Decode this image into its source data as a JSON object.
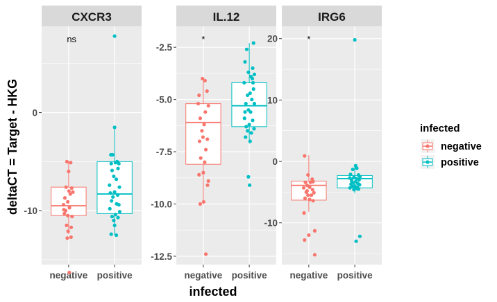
{
  "figure": {
    "ylabel": "deltaCT = Target - HKG",
    "xlabel": "infected",
    "legend": {
      "title": "infected",
      "entries": [
        {
          "label": "negative",
          "color": "#F8766D"
        },
        {
          "label": "positive",
          "color": "#00BFC4"
        }
      ],
      "placement": "right"
    },
    "colors": {
      "panel_bg": "#EBEBEB",
      "strip_bg": "#D9D9D9",
      "grid": "#FFFFFF",
      "negative": "#F8766D",
      "positive": "#00BFC4"
    }
  },
  "chart_data": [
    {
      "type": "box",
      "title": "CXCR3",
      "categories": [
        "negative",
        "positive"
      ],
      "ylim": [
        -15.5,
        8.8
      ],
      "yticks": [
        {
          "v": 0,
          "label": "0"
        },
        {
          "v": -10,
          "label": "-10"
        }
      ],
      "annotation": "ns",
      "series": [
        {
          "group": "negative",
          "box": {
            "q1": -10.5,
            "median": -9.5,
            "q3": -7.6,
            "lower": -12.4,
            "upper": -5.0
          },
          "points": [
            [
              -0.3,
              -9.4
            ],
            [
              -0.25,
              -10.3
            ],
            [
              -0.18,
              -10.0
            ],
            [
              -0.05,
              -10.5
            ],
            [
              0.05,
              -9.7
            ],
            [
              0.2,
              -10.6
            ],
            [
              -0.12,
              -11.5
            ],
            [
              0.15,
              -11.7
            ],
            [
              -0.08,
              -12.8
            ],
            [
              0.14,
              -12.7
            ],
            [
              -0.03,
              -12.1
            ],
            [
              0.02,
              -8.0
            ],
            [
              0.1,
              -8.3
            ],
            [
              -0.22,
              -8.7
            ],
            [
              0.25,
              -8.1
            ],
            [
              -0.15,
              -7.6
            ],
            [
              0.18,
              -7.7
            ],
            [
              -0.05,
              -9.1
            ],
            [
              0.0,
              -6.0
            ],
            [
              -0.1,
              -5.0
            ],
            [
              0.12,
              -5.1
            ],
            [
              0.04,
              -16.3
            ],
            [
              -0.28,
              -9.9
            ]
          ]
        },
        {
          "group": "positive",
          "box": {
            "q1": -10.3,
            "median": -8.3,
            "q3": -5.0,
            "lower": -12.5,
            "upper": -1.5
          },
          "points": [
            [
              0.0,
              7.8
            ],
            [
              0.0,
              -1.5
            ],
            [
              -0.22,
              -4.3
            ],
            [
              -0.12,
              -4.3
            ],
            [
              -0.2,
              -5.2
            ],
            [
              0.05,
              -5.1
            ],
            [
              0.15,
              -5.0
            ],
            [
              0.25,
              -5.2
            ],
            [
              -0.15,
              -5.9
            ],
            [
              0.2,
              -5.7
            ],
            [
              -0.05,
              -6.5
            ],
            [
              0.1,
              -6.8
            ],
            [
              -0.3,
              -7.4
            ],
            [
              0.28,
              -7.6
            ],
            [
              -0.25,
              -8.2
            ],
            [
              0.0,
              -8.1
            ],
            [
              0.18,
              -8.4
            ],
            [
              -0.1,
              -8.6
            ],
            [
              -0.18,
              -9.0
            ],
            [
              0.12,
              -9.3
            ],
            [
              0.25,
              -9.4
            ],
            [
              -0.28,
              -9.8
            ],
            [
              0.05,
              -10.4
            ],
            [
              -0.15,
              -10.6
            ],
            [
              0.2,
              -10.7
            ],
            [
              -0.05,
              -11.0
            ],
            [
              0.0,
              -11.5
            ],
            [
              -0.2,
              -12.4
            ],
            [
              0.1,
              -12.5
            ],
            [
              0.3,
              -10.1
            ]
          ]
        }
      ]
    },
    {
      "type": "box",
      "title": "IL.12",
      "categories": [
        "negative",
        "positive"
      ],
      "ylim": [
        -12.9,
        -1.5
      ],
      "yticks": [
        {
          "v": -2.5,
          "label": "-2.5"
        },
        {
          "v": -5.0,
          "label": "-5.0"
        },
        {
          "v": -7.5,
          "label": "-7.5"
        },
        {
          "v": -10.0,
          "label": "-10.0"
        },
        {
          "v": -12.5,
          "label": "-12.5"
        }
      ],
      "annotation": "*",
      "series": [
        {
          "group": "negative",
          "box": {
            "q1": -8.1,
            "median": -6.1,
            "q3": -5.2,
            "lower": -10.0,
            "upper": -4.1
          },
          "points": [
            [
              -0.05,
              -4.0
            ],
            [
              0.1,
              -4.1
            ],
            [
              0.22,
              -4.6
            ],
            [
              -0.25,
              -4.8
            ],
            [
              0.3,
              -5.3
            ],
            [
              -0.3,
              -5.2
            ],
            [
              0.12,
              -5.6
            ],
            [
              -0.18,
              -5.9
            ],
            [
              0.05,
              -6.2
            ],
            [
              -0.08,
              -6.5
            ],
            [
              0.24,
              -6.9
            ],
            [
              -0.22,
              -7.0
            ],
            [
              0.15,
              -7.4
            ],
            [
              -0.15,
              -7.8
            ],
            [
              0.08,
              -8.0
            ],
            [
              0.0,
              -8.5
            ],
            [
              -0.25,
              -8.6
            ],
            [
              0.3,
              -8.9
            ],
            [
              0.25,
              -9.1
            ],
            [
              0.02,
              -9.9
            ],
            [
              -0.18,
              -10.0
            ],
            [
              0.15,
              -12.4
            ],
            [
              -0.02,
              -6.8
            ]
          ]
        },
        {
          "group": "positive",
          "box": {
            "q1": -6.3,
            "median": -5.3,
            "q3": -4.2,
            "lower": -7.1,
            "upper": -2.3
          },
          "points": [
            [
              0.25,
              -2.3
            ],
            [
              -0.15,
              -2.6
            ],
            [
              -0.25,
              -3.2
            ],
            [
              0.2,
              -3.5
            ],
            [
              0.3,
              -3.8
            ],
            [
              0.1,
              -3.9
            ],
            [
              -0.05,
              -3.7
            ],
            [
              0.18,
              -4.0
            ],
            [
              -0.3,
              -4.2
            ],
            [
              0.25,
              -4.5
            ],
            [
              0.05,
              -4.7
            ],
            [
              -0.1,
              -4.8
            ],
            [
              -0.2,
              -5.2
            ],
            [
              0.15,
              -5.0
            ],
            [
              0.3,
              -5.2
            ],
            [
              -0.05,
              -5.5
            ],
            [
              0.08,
              -5.6
            ],
            [
              -0.28,
              -5.9
            ],
            [
              0.2,
              -6.0
            ],
            [
              0.0,
              -6.2
            ],
            [
              -0.18,
              -6.3
            ],
            [
              0.12,
              -6.6
            ],
            [
              -0.1,
              -6.5
            ],
            [
              0.28,
              -6.4
            ],
            [
              -0.22,
              -6.8
            ],
            [
              0.05,
              -7.0
            ],
            [
              -0.05,
              -8.7
            ],
            [
              0.02,
              -9.1
            ],
            [
              -0.25,
              -5.6
            ],
            [
              0.22,
              -4.2
            ]
          ]
        }
      ]
    },
    {
      "type": "box",
      "title": "IRG6",
      "categories": [
        "negative",
        "positive"
      ],
      "ylim": [
        -16.8,
        22.0
      ],
      "yticks": [
        {
          "v": 20,
          "label": "20"
        },
        {
          "v": 10,
          "label": "10"
        },
        {
          "v": 0,
          "label": "0"
        },
        {
          "v": -10,
          "label": "-10"
        }
      ],
      "annotation": "*",
      "series": [
        {
          "group": "negative",
          "box": {
            "q1": -6.3,
            "median": -3.9,
            "q3": -3.2,
            "lower": -8.2,
            "upper": 1.0
          },
          "points": [
            [
              -0.25,
              0.9
            ],
            [
              -0.05,
              -2.2
            ],
            [
              0.2,
              -2.9
            ],
            [
              -0.2,
              -3.4
            ],
            [
              0.1,
              -3.4
            ],
            [
              0.25,
              -3.3
            ],
            [
              -0.1,
              -3.9
            ],
            [
              0.05,
              -4.2
            ],
            [
              -0.3,
              -4.3
            ],
            [
              0.22,
              -4.6
            ],
            [
              -0.15,
              -5.0
            ],
            [
              0.3,
              -5.1
            ],
            [
              -0.05,
              -5.5
            ],
            [
              0.15,
              -5.5
            ],
            [
              -0.22,
              -6.0
            ],
            [
              0.05,
              -6.2
            ],
            [
              0.25,
              -6.4
            ],
            [
              -0.28,
              -8.4
            ],
            [
              0.0,
              -12.0
            ],
            [
              0.35,
              -11.3
            ],
            [
              -0.25,
              -12.8
            ],
            [
              0.35,
              -15.2
            ],
            [
              -0.1,
              -4.8
            ]
          ]
        },
        {
          "group": "positive",
          "box": {
            "q1": -4.3,
            "median": -2.8,
            "q3": -2.3,
            "lower": -5.2,
            "upper": -0.5
          },
          "points": [
            [
              0.0,
              19.8
            ],
            [
              0.05,
              -0.7
            ],
            [
              -0.12,
              -1.3
            ],
            [
              0.12,
              -1.1
            ],
            [
              -0.25,
              -2.1
            ],
            [
              0.22,
              -2.2
            ],
            [
              0.3,
              -2.5
            ],
            [
              -0.05,
              -2.6
            ],
            [
              0.1,
              -2.8
            ],
            [
              -0.3,
              -2.7
            ],
            [
              0.25,
              -3.0
            ],
            [
              -0.18,
              -3.2
            ],
            [
              0.05,
              -3.3
            ],
            [
              -0.1,
              -3.5
            ],
            [
              0.18,
              -3.6
            ],
            [
              -0.22,
              -3.7
            ],
            [
              0.28,
              -3.8
            ],
            [
              0.0,
              -4.0
            ],
            [
              -0.15,
              -4.1
            ],
            [
              0.15,
              -4.2
            ],
            [
              -0.28,
              -4.3
            ],
            [
              0.08,
              -4.4
            ],
            [
              0.22,
              -4.5
            ],
            [
              -0.05,
              -4.6
            ],
            [
              0.3,
              -12.2
            ],
            [
              0.08,
              -13.0
            ],
            [
              -0.2,
              -2.9
            ]
          ]
        }
      ]
    }
  ]
}
